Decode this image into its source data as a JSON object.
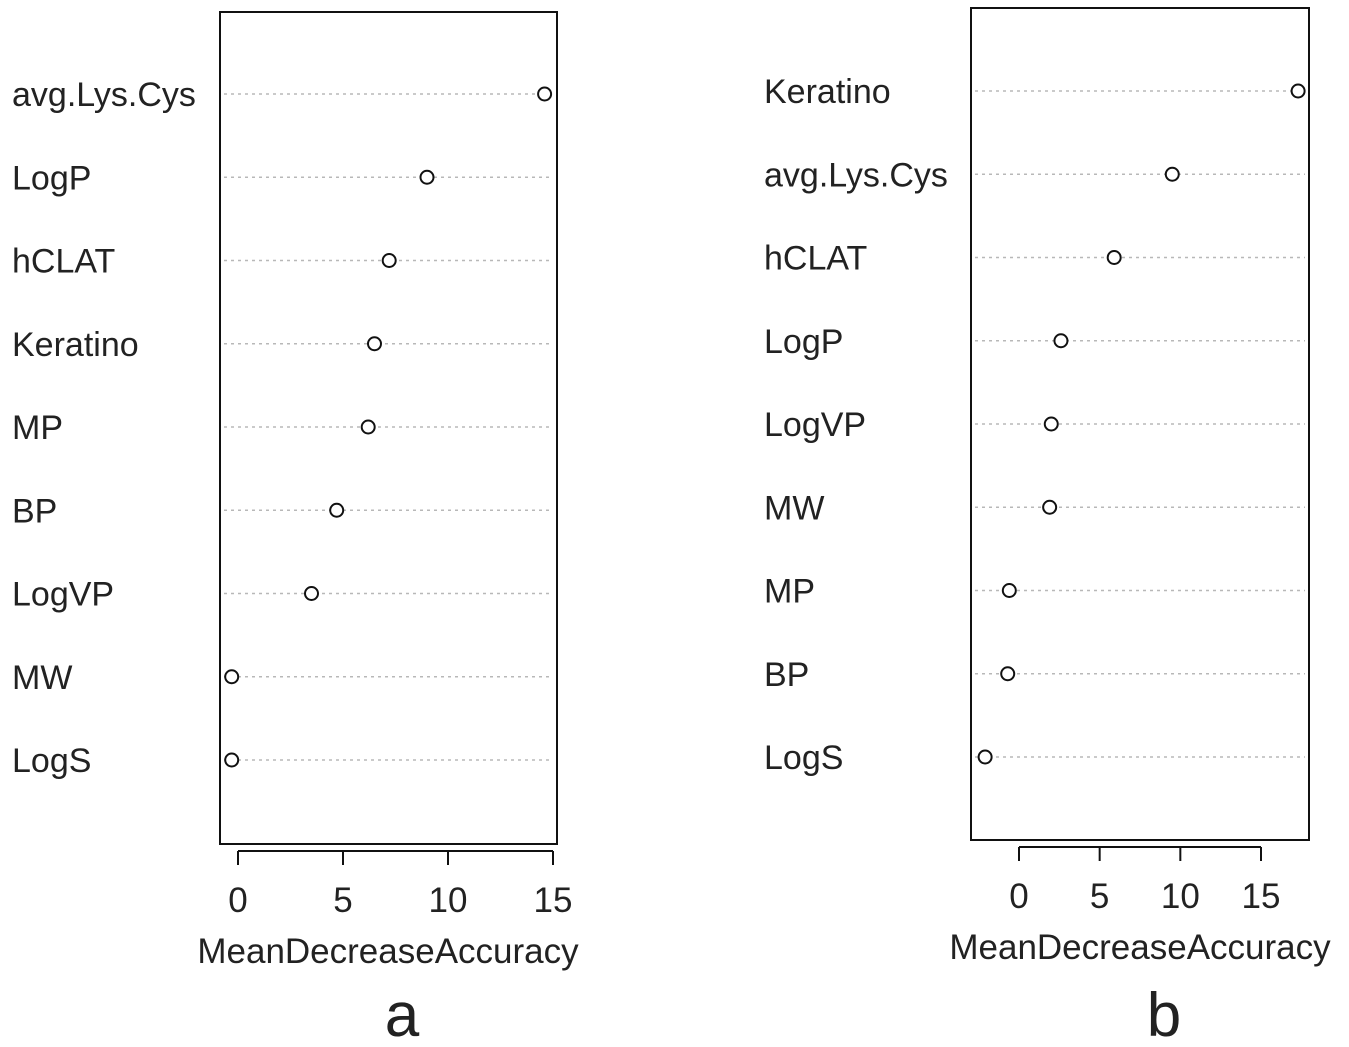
{
  "chart_data": [
    {
      "type": "dotplot",
      "panel_label": "a",
      "xlabel": "MeanDecreaseAccuracy",
      "xlim": [
        -1,
        15.5
      ],
      "xticks": [
        "0",
        "5",
        "10",
        "15"
      ],
      "grid": true,
      "categories": [
        "avg.Lys.Cys",
        "LogP",
        "hCLAT",
        "Keratino",
        "MP",
        "BP",
        "LogVP",
        "MW",
        "LogS"
      ],
      "values": [
        14.6,
        9.0,
        7.2,
        6.5,
        6.2,
        4.7,
        3.5,
        -0.3,
        -0.3
      ]
    },
    {
      "type": "dotplot",
      "panel_label": "b",
      "xlabel": "MeanDecreaseAccuracy",
      "xlim": [
        -3,
        18
      ],
      "xticks": [
        "0",
        "5",
        "10",
        "15"
      ],
      "grid": true,
      "categories": [
        "Keratino",
        "avg.Lys.Cys",
        "hCLAT",
        "LogP",
        "LogVP",
        "MW",
        "MP",
        "BP",
        "LogS"
      ],
      "values": [
        17.3,
        9.5,
        5.9,
        2.6,
        2.0,
        1.9,
        -0.6,
        -0.7,
        -2.1
      ]
    }
  ]
}
